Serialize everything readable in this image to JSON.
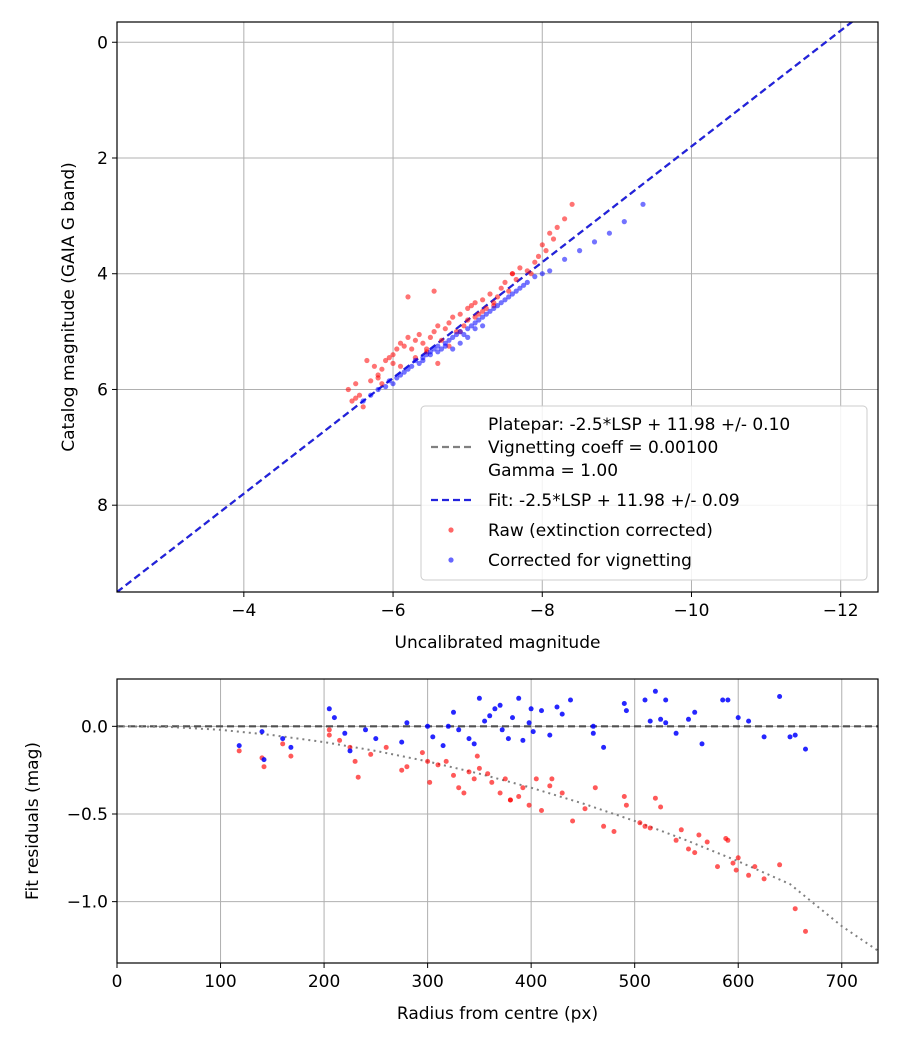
{
  "chart_data": [
    {
      "type": "scatter",
      "xlabel": "Uncalibrated magnitude",
      "ylabel": "Catalog magnitude (GAIA G band)",
      "xlim": [
        -2.3,
        -12.5
      ],
      "ylim": [
        9.5,
        -0.35
      ],
      "x_inverted": true,
      "y_inverted": true,
      "grid": true,
      "legend_position": "lower-right",
      "xticks": [
        -4,
        -6,
        -8,
        -10,
        -12
      ],
      "xtick_labels": [
        "−4",
        "−6",
        "−8",
        "−10",
        "−12"
      ],
      "yticks": [
        0,
        2,
        4,
        6,
        8
      ],
      "ytick_labels": [
        "0",
        "2",
        "4",
        "6",
        "8"
      ],
      "legend": [
        {
          "kind": "line",
          "dash": true,
          "color": "#808080",
          "lines": [
            "Platepar: -2.5*LSP + 11.98 +/- 0.10",
            "Vignetting coeff = 0.00100",
            "Gamma = 1.00"
          ]
        },
        {
          "kind": "line",
          "dash": true,
          "color": "#2222dd",
          "lines": [
            "Fit: -2.5*LSP + 11.98 +/- 0.09"
          ]
        },
        {
          "kind": "marker",
          "color": "#ff0000",
          "lines": [
            "Raw (extinction corrected)"
          ]
        },
        {
          "kind": "marker",
          "color": "#0000ff",
          "lines": [
            "Corrected for vignetting"
          ]
        }
      ],
      "series": [
        {
          "name": "Platepar: -2.5*LSP + 11.98 +/- 0.10",
          "kind": "line",
          "style": "dashed",
          "color": "#808080",
          "x": [
            -2.3,
            -12.5
          ],
          "y": [
            9.5,
            -0.7
          ]
        },
        {
          "name": "Fit: -2.5*LSP + 11.98 +/- 0.09",
          "kind": "line",
          "style": "dashed",
          "color": "#2222dd",
          "x": [
            -2.3,
            -12.5
          ],
          "y": [
            9.5,
            -0.7
          ]
        },
        {
          "name": "Raw (extinction corrected)",
          "kind": "points",
          "color": "#ff0000",
          "x": [
            -5.4,
            -5.45,
            -5.5,
            -5.55,
            -5.6,
            -5.5,
            -5.65,
            -5.7,
            -5.75,
            -5.8,
            -5.85,
            -5.9,
            -5.8,
            -5.95,
            -6.0,
            -6.05,
            -6.1,
            -6.0,
            -6.15,
            -6.2,
            -6.25,
            -6.3,
            -6.35,
            -6.4,
            -6.45,
            -6.5,
            -6.55,
            -6.6,
            -6.65,
            -6.7,
            -6.75,
            -6.8,
            -6.85,
            -6.9,
            -6.95,
            -7.0,
            -7.05,
            -7.1,
            -7.15,
            -7.2,
            -7.25,
            -7.3,
            -7.35,
            -7.4,
            -7.45,
            -7.5,
            -7.55,
            -7.6,
            -7.65,
            -7.7,
            -7.8,
            -7.85,
            -7.9,
            -7.95,
            -8.0,
            -8.05,
            -8.1,
            -8.15,
            -8.2,
            -8.3,
            -8.4,
            -5.85,
            -6.1,
            -6.3,
            -6.45,
            -6.6,
            -6.75,
            -6.9,
            -7.0,
            -7.2,
            -7.35,
            -6.55,
            -6.2,
            -7.1,
            -7.6
          ],
          "y": [
            6.0,
            6.2,
            5.9,
            6.1,
            6.3,
            6.15,
            5.5,
            5.85,
            5.6,
            5.75,
            5.65,
            5.5,
            5.8,
            5.45,
            5.4,
            5.3,
            5.2,
            5.55,
            5.25,
            5.1,
            5.3,
            5.15,
            5.05,
            5.2,
            5.35,
            5.1,
            5.0,
            4.9,
            5.15,
            4.95,
            4.85,
            4.75,
            5.0,
            4.7,
            4.9,
            4.6,
            4.55,
            4.5,
            4.7,
            4.45,
            4.6,
            4.35,
            4.5,
            4.4,
            4.25,
            4.15,
            4.3,
            4.0,
            4.1,
            3.9,
            3.95,
            4.0,
            3.8,
            3.7,
            3.5,
            3.6,
            3.3,
            3.4,
            3.2,
            3.05,
            2.8,
            5.9,
            5.6,
            5.45,
            5.3,
            5.55,
            5.25,
            5.0,
            4.8,
            4.65,
            4.55,
            4.3,
            4.4,
            4.75,
            4.0
          ]
        },
        {
          "name": "Corrected for vignetting",
          "kind": "points",
          "color": "#0000ff",
          "x": [
            -5.6,
            -5.7,
            -5.8,
            -5.9,
            -5.95,
            -6.0,
            -6.05,
            -6.1,
            -6.15,
            -6.2,
            -6.25,
            -6.3,
            -6.35,
            -6.4,
            -6.45,
            -6.5,
            -6.55,
            -6.6,
            -6.65,
            -6.7,
            -6.75,
            -6.8,
            -6.85,
            -6.9,
            -6.95,
            -7.0,
            -7.05,
            -7.1,
            -7.15,
            -7.2,
            -7.25,
            -7.3,
            -7.35,
            -7.4,
            -7.45,
            -7.5,
            -7.55,
            -7.6,
            -7.65,
            -7.7,
            -7.75,
            -7.8,
            -7.9,
            -8.0,
            -8.1,
            -8.3,
            -8.5,
            -8.7,
            -8.9,
            -9.1,
            -9.35,
            -6.5,
            -6.6,
            -6.7,
            -6.8,
            -7.0,
            -7.2,
            -6.4,
            -6.9,
            -7.1
          ],
          "y": [
            6.2,
            6.1,
            6.0,
            5.95,
            5.85,
            5.9,
            5.8,
            5.75,
            5.7,
            5.65,
            5.6,
            5.5,
            5.55,
            5.45,
            5.4,
            5.35,
            5.3,
            5.25,
            5.3,
            5.2,
            5.15,
            5.1,
            5.05,
            5.0,
            5.05,
            4.95,
            4.9,
            4.85,
            4.8,
            4.75,
            4.7,
            4.65,
            4.6,
            4.55,
            4.5,
            4.45,
            4.4,
            4.35,
            4.3,
            4.25,
            4.2,
            4.15,
            4.05,
            4.0,
            3.95,
            3.75,
            3.6,
            3.45,
            3.3,
            3.1,
            2.8,
            5.4,
            5.35,
            5.25,
            5.3,
            5.1,
            4.9,
            5.5,
            5.2,
            4.95
          ]
        }
      ]
    },
    {
      "type": "scatter",
      "xlabel": "Radius from centre (px)",
      "ylabel": "Fit residuals (mag)",
      "xlim": [
        0,
        735
      ],
      "ylim": [
        -1.35,
        0.27
      ],
      "grid": true,
      "xticks": [
        0,
        100,
        200,
        300,
        400,
        500,
        600,
        700
      ],
      "xtick_labels": [
        "0",
        "100",
        "200",
        "300",
        "400",
        "500",
        "600",
        "700"
      ],
      "yticks": [
        0,
        -0.5,
        -1
      ],
      "ytick_labels": [
        "0.0",
        "−0.5",
        "−1.0"
      ],
      "series": [
        {
          "name": "",
          "kind": "line",
          "style": "dashed",
          "color": "#505050",
          "x": [
            0,
            735
          ],
          "y": [
            0,
            0
          ]
        },
        {
          "name": "",
          "kind": "line",
          "style": "dotted",
          "color": "#808080",
          "x": [
            0,
            50,
            100,
            150,
            200,
            250,
            300,
            350,
            400,
            450,
            500,
            550,
            600,
            650,
            700,
            735
          ],
          "y": [
            0,
            -0.003,
            -0.02,
            -0.05,
            -0.09,
            -0.14,
            -0.2,
            -0.27,
            -0.35,
            -0.44,
            -0.54,
            -0.65,
            -0.77,
            -0.9,
            -1.14,
            -1.28
          ]
        },
        {
          "name": "",
          "kind": "points",
          "color": "#ff0000",
          "x": [
            118,
            140,
            142,
            160,
            168,
            205,
            215,
            225,
            230,
            233,
            245,
            275,
            280,
            300,
            302,
            310,
            325,
            330,
            335,
            340,
            345,
            350,
            358,
            362,
            370,
            375,
            380,
            388,
            392,
            398,
            405,
            410,
            420,
            430,
            440,
            462,
            470,
            480,
            490,
            492,
            510,
            515,
            520,
            525,
            540,
            552,
            558,
            562,
            570,
            588,
            590,
            595,
            600,
            610,
            625,
            640,
            655,
            665,
            205,
            260,
            295,
            318,
            348,
            380,
            418,
            452,
            505,
            545,
            580,
            598,
            616
          ],
          "y": [
            -0.14,
            -0.18,
            -0.23,
            -0.1,
            -0.17,
            -0.05,
            -0.08,
            -0.12,
            -0.2,
            -0.29,
            -0.16,
            -0.25,
            -0.23,
            -0.2,
            -0.32,
            -0.22,
            -0.28,
            -0.35,
            -0.38,
            -0.26,
            -0.3,
            -0.24,
            -0.27,
            -0.32,
            -0.38,
            -0.3,
            -0.42,
            -0.4,
            -0.35,
            -0.45,
            -0.3,
            -0.48,
            -0.3,
            -0.38,
            -0.54,
            -0.35,
            -0.57,
            -0.6,
            -0.4,
            -0.45,
            -0.57,
            -0.58,
            -0.41,
            -0.46,
            -0.65,
            -0.7,
            -0.72,
            -0.62,
            -0.66,
            -0.64,
            -0.65,
            -0.78,
            -0.75,
            -0.85,
            -0.87,
            -0.79,
            -1.04,
            -1.17,
            -0.02,
            -0.12,
            -0.15,
            -0.2,
            -0.17,
            -0.42,
            -0.34,
            -0.47,
            -0.55,
            -0.59,
            -0.8,
            -0.82,
            -0.8
          ]
        },
        {
          "name": "",
          "kind": "points",
          "color": "#0000ff",
          "x": [
            118,
            140,
            142,
            160,
            168,
            205,
            210,
            220,
            225,
            240,
            250,
            275,
            280,
            300,
            305,
            315,
            320,
            325,
            330,
            340,
            345,
            350,
            355,
            360,
            365,
            372,
            378,
            382,
            388,
            392,
            398,
            402,
            410,
            418,
            425,
            430,
            438,
            460,
            470,
            490,
            492,
            510,
            515,
            520,
            525,
            530,
            540,
            552,
            558,
            565,
            590,
            600,
            610,
            625,
            640,
            655,
            665,
            370,
            400,
            460,
            530,
            585,
            650
          ],
          "y": [
            -0.11,
            -0.03,
            -0.19,
            -0.07,
            -0.12,
            0.1,
            0.05,
            -0.04,
            -0.14,
            -0.02,
            -0.07,
            -0.09,
            0.02,
            0.0,
            -0.06,
            -0.11,
            0.0,
            0.08,
            -0.02,
            -0.07,
            -0.1,
            0.16,
            0.03,
            0.06,
            0.1,
            -0.02,
            -0.07,
            0.05,
            0.16,
            -0.08,
            0.02,
            -0.03,
            0.09,
            -0.05,
            0.11,
            0.07,
            0.15,
            0.0,
            -0.12,
            0.13,
            0.09,
            0.15,
            0.03,
            0.2,
            0.04,
            0.15,
            -0.04,
            0.04,
            0.08,
            -0.1,
            0.15,
            0.05,
            0.03,
            -0.06,
            0.17,
            -0.05,
            -0.13,
            0.12,
            0.1,
            -0.04,
            0.02,
            0.15,
            -0.06
          ]
        }
      ]
    }
  ]
}
